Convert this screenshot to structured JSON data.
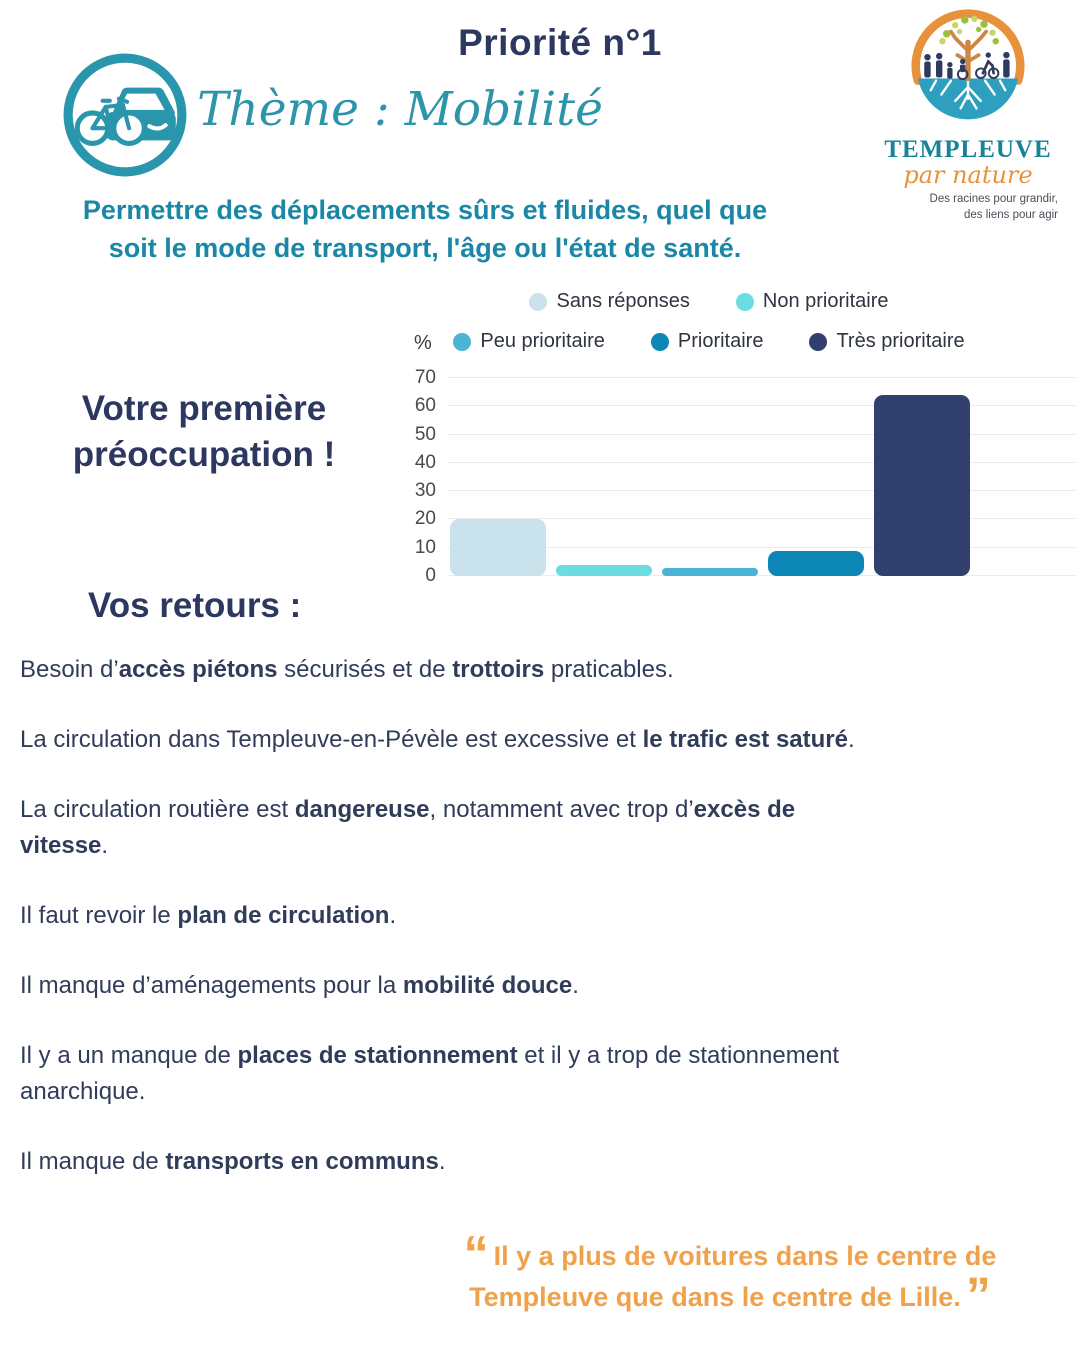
{
  "header": {
    "priority_title": "Priorité n°1",
    "theme_title": "Thème : Mobilité",
    "statement_line1": "Permettre des déplacements sûrs et fluides, quel que",
    "statement_line2": "soit le mode de transport, l'âge ou l'état de santé."
  },
  "logo": {
    "name": "TEMPLEUVE",
    "subname": "par nature",
    "tagline_line1": "Des racines pour grandir,",
    "tagline_line2": "des liens pour agir"
  },
  "chart_data": {
    "type": "bar",
    "title": "",
    "xlabel": "",
    "ylabel": "%",
    "unit_label": "%",
    "categories": [
      "Sans réponses",
      "Non prioritaire",
      "Peu prioritaire",
      "Prioritaire",
      "Très prioritaire"
    ],
    "values": [
      20,
      4,
      3,
      9,
      64
    ],
    "colors": [
      "#c9e2eb",
      "#6adde2",
      "#4db3d4",
      "#0c87b5",
      "#32406e"
    ],
    "legend_rows": [
      [
        0,
        1
      ],
      [
        2,
        3,
        4
      ]
    ],
    "ylim": [
      0,
      70
    ],
    "yticks": [
      0,
      10,
      20,
      30,
      40,
      50,
      60,
      70
    ],
    "grid": true,
    "legend_position": "top"
  },
  "highlight": {
    "line1": "Votre première",
    "line2": "préoccupation !"
  },
  "feedback_heading": "Vos retours :",
  "feedback": [
    {
      "segments": [
        {
          "t": "Besoin d’",
          "b": false
        },
        {
          "t": "accès piétons",
          "b": true
        },
        {
          "t": " sécurisés et de ",
          "b": false
        },
        {
          "t": "trottoirs",
          "b": true
        },
        {
          "t": " praticables.",
          "b": false
        }
      ]
    },
    {
      "segments": [
        {
          "t": "La circulation dans Templeuve-en-Pévèle est excessive et ",
          "b": false
        },
        {
          "t": "le trafic est saturé",
          "b": true
        },
        {
          "t": ".",
          "b": false
        }
      ]
    },
    {
      "segments": [
        {
          "t": "La circulation routière est ",
          "b": false
        },
        {
          "t": "dangereuse",
          "b": true
        },
        {
          "t": ", notamment avec trop d’",
          "b": false
        },
        {
          "t": "excès de",
          "b": true
        },
        {
          "br": true
        },
        {
          "t": "vitesse",
          "b": true
        },
        {
          "t": ".",
          "b": false
        }
      ]
    },
    {
      "segments": [
        {
          "t": "Il faut revoir le ",
          "b": false
        },
        {
          "t": "plan de circulation",
          "b": true
        },
        {
          "t": ".",
          "b": false
        }
      ]
    },
    {
      "segments": [
        {
          "t": "Il manque d’aménagements pour la ",
          "b": false
        },
        {
          "t": "mobilité douce",
          "b": true
        },
        {
          "t": ".",
          "b": false
        }
      ]
    },
    {
      "segments": [
        {
          "t": "Il y a un manque de ",
          "b": false
        },
        {
          "t": "places de stationnement",
          "b": true
        },
        {
          "t": " et il y a trop de stationnement",
          "b": false
        },
        {
          "br": true
        },
        {
          "t": "anarchique.",
          "b": false
        }
      ]
    },
    {
      "segments": [
        {
          "t": "Il manque de ",
          "b": false
        },
        {
          "t": "transports en communs",
          "b": true
        },
        {
          "t": ".",
          "b": false
        }
      ]
    }
  ],
  "quote": {
    "open_mark": "“",
    "close_mark": "”",
    "line1": "Il y a plus de voitures dans le centre de",
    "line2": "Templeuve que dans le centre de Lille.",
    "color": "#f0a14b"
  }
}
